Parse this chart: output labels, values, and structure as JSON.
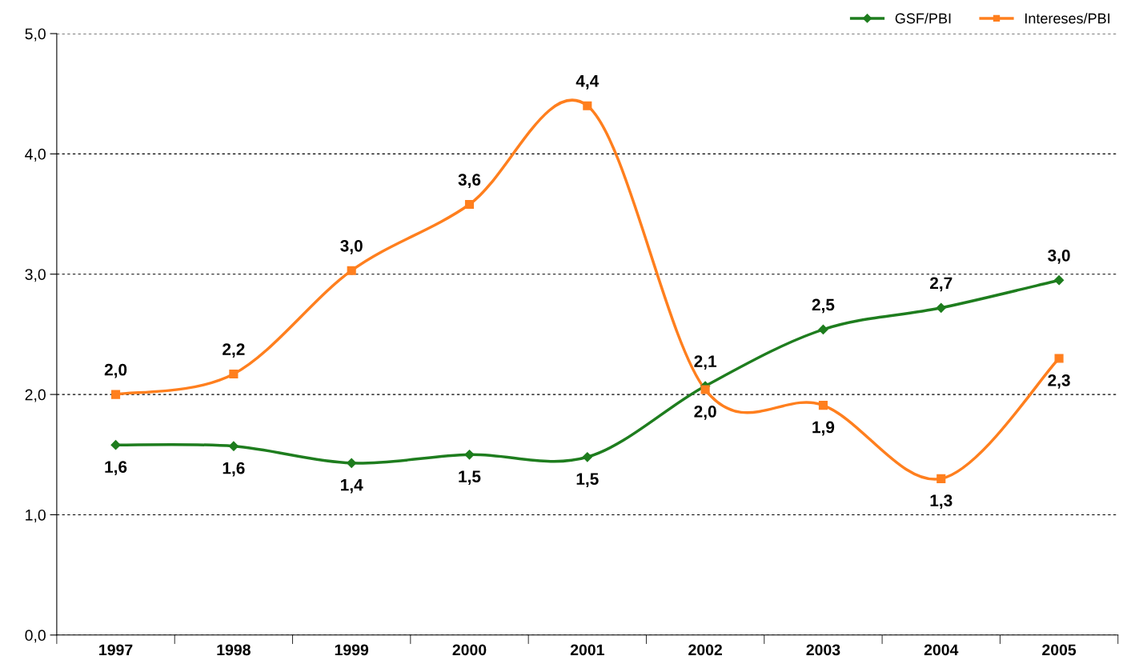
{
  "chart_data": {
    "type": "line",
    "categories": [
      "1997",
      "1998",
      "1999",
      "2000",
      "2001",
      "2002",
      "2003",
      "2004",
      "2005"
    ],
    "series": [
      {
        "name": "GSF/PBI",
        "color": "#1e7d1e",
        "marker": "diamond",
        "values": [
          1.58,
          1.57,
          1.43,
          1.5,
          1.48,
          2.07,
          2.54,
          2.72,
          2.95
        ],
        "value_labels": [
          "1,6",
          "1,6",
          "1,4",
          "1,5",
          "1,5",
          "2,1",
          "2,5",
          "2,7",
          "3,0"
        ]
      },
      {
        "name": "Intereses/PBI",
        "color": "#ff7f1e",
        "marker": "square",
        "values": [
          2.0,
          2.17,
          3.03,
          3.58,
          4.4,
          2.04,
          1.91,
          1.3,
          2.3
        ],
        "value_labels": [
          "2,0",
          "2,2",
          "3,0",
          "3,6",
          "4,4",
          "2,0",
          "1,9",
          "1,3",
          "2,3"
        ]
      }
    ],
    "ylim": [
      0,
      5
    ],
    "yticks": [
      {
        "value": 0,
        "label": "0,0"
      },
      {
        "value": 1,
        "label": "1,0"
      },
      {
        "value": 2,
        "label": "2,0"
      },
      {
        "value": 3,
        "label": "3,0"
      },
      {
        "value": 4,
        "label": "4,0"
      },
      {
        "value": 5,
        "label": "5,0"
      }
    ],
    "grid": "y",
    "legend": "top right",
    "line_style": "solid"
  }
}
